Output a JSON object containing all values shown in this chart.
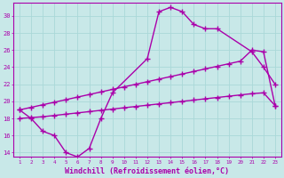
{
  "color": "#aa00aa",
  "bg_color": "#c8e8e8",
  "grid_color": "#aad8d8",
  "xlabel": "Windchill (Refroidissement éolien,°C)",
  "ylim": [
    13.5,
    31.5
  ],
  "yticks": [
    14,
    16,
    18,
    20,
    22,
    24,
    26,
    28,
    30
  ],
  "xlim": [
    0.5,
    23.5
  ],
  "xticks": [
    1,
    2,
    3,
    4,
    5,
    6,
    7,
    8,
    9,
    10,
    11,
    12,
    13,
    14,
    15,
    16,
    17,
    18,
    19,
    20,
    21,
    22,
    23
  ],
  "s1_x": [
    1,
    2,
    3,
    4,
    5,
    6,
    7,
    8,
    9,
    10,
    11,
    12,
    13,
    14,
    15,
    16,
    17,
    18,
    19,
    20,
    21,
    22,
    23
  ],
  "s1_y": [
    19.0,
    19.3,
    19.6,
    19.9,
    20.2,
    20.5,
    20.8,
    21.1,
    21.4,
    21.7,
    22.0,
    22.3,
    22.6,
    22.9,
    23.2,
    23.5,
    23.8,
    24.1,
    24.4,
    24.7,
    26.0,
    25.8,
    19.5
  ],
  "s2_x": [
    1,
    2,
    3,
    4,
    5,
    6,
    7,
    8,
    9,
    10,
    11,
    12,
    13,
    14,
    15,
    16,
    17,
    18,
    19,
    20,
    21,
    22,
    23
  ],
  "s2_y": [
    18.0,
    18.1,
    18.2,
    18.35,
    18.5,
    18.65,
    18.8,
    18.95,
    19.1,
    19.25,
    19.4,
    19.55,
    19.7,
    19.85,
    20.0,
    20.15,
    20.3,
    20.45,
    20.6,
    20.75,
    20.9,
    21.0,
    19.5
  ],
  "s3_x": [
    1,
    2,
    3,
    4,
    5,
    6,
    7,
    8,
    9,
    12,
    13,
    14,
    15,
    16,
    17,
    18,
    21,
    22,
    23
  ],
  "s3_y": [
    19.0,
    18.0,
    16.5,
    16.0,
    14.0,
    13.5,
    14.5,
    18.0,
    21.0,
    25.0,
    30.5,
    31.0,
    30.5,
    29.0,
    28.5,
    28.5,
    25.8,
    24.0,
    22.0
  ]
}
